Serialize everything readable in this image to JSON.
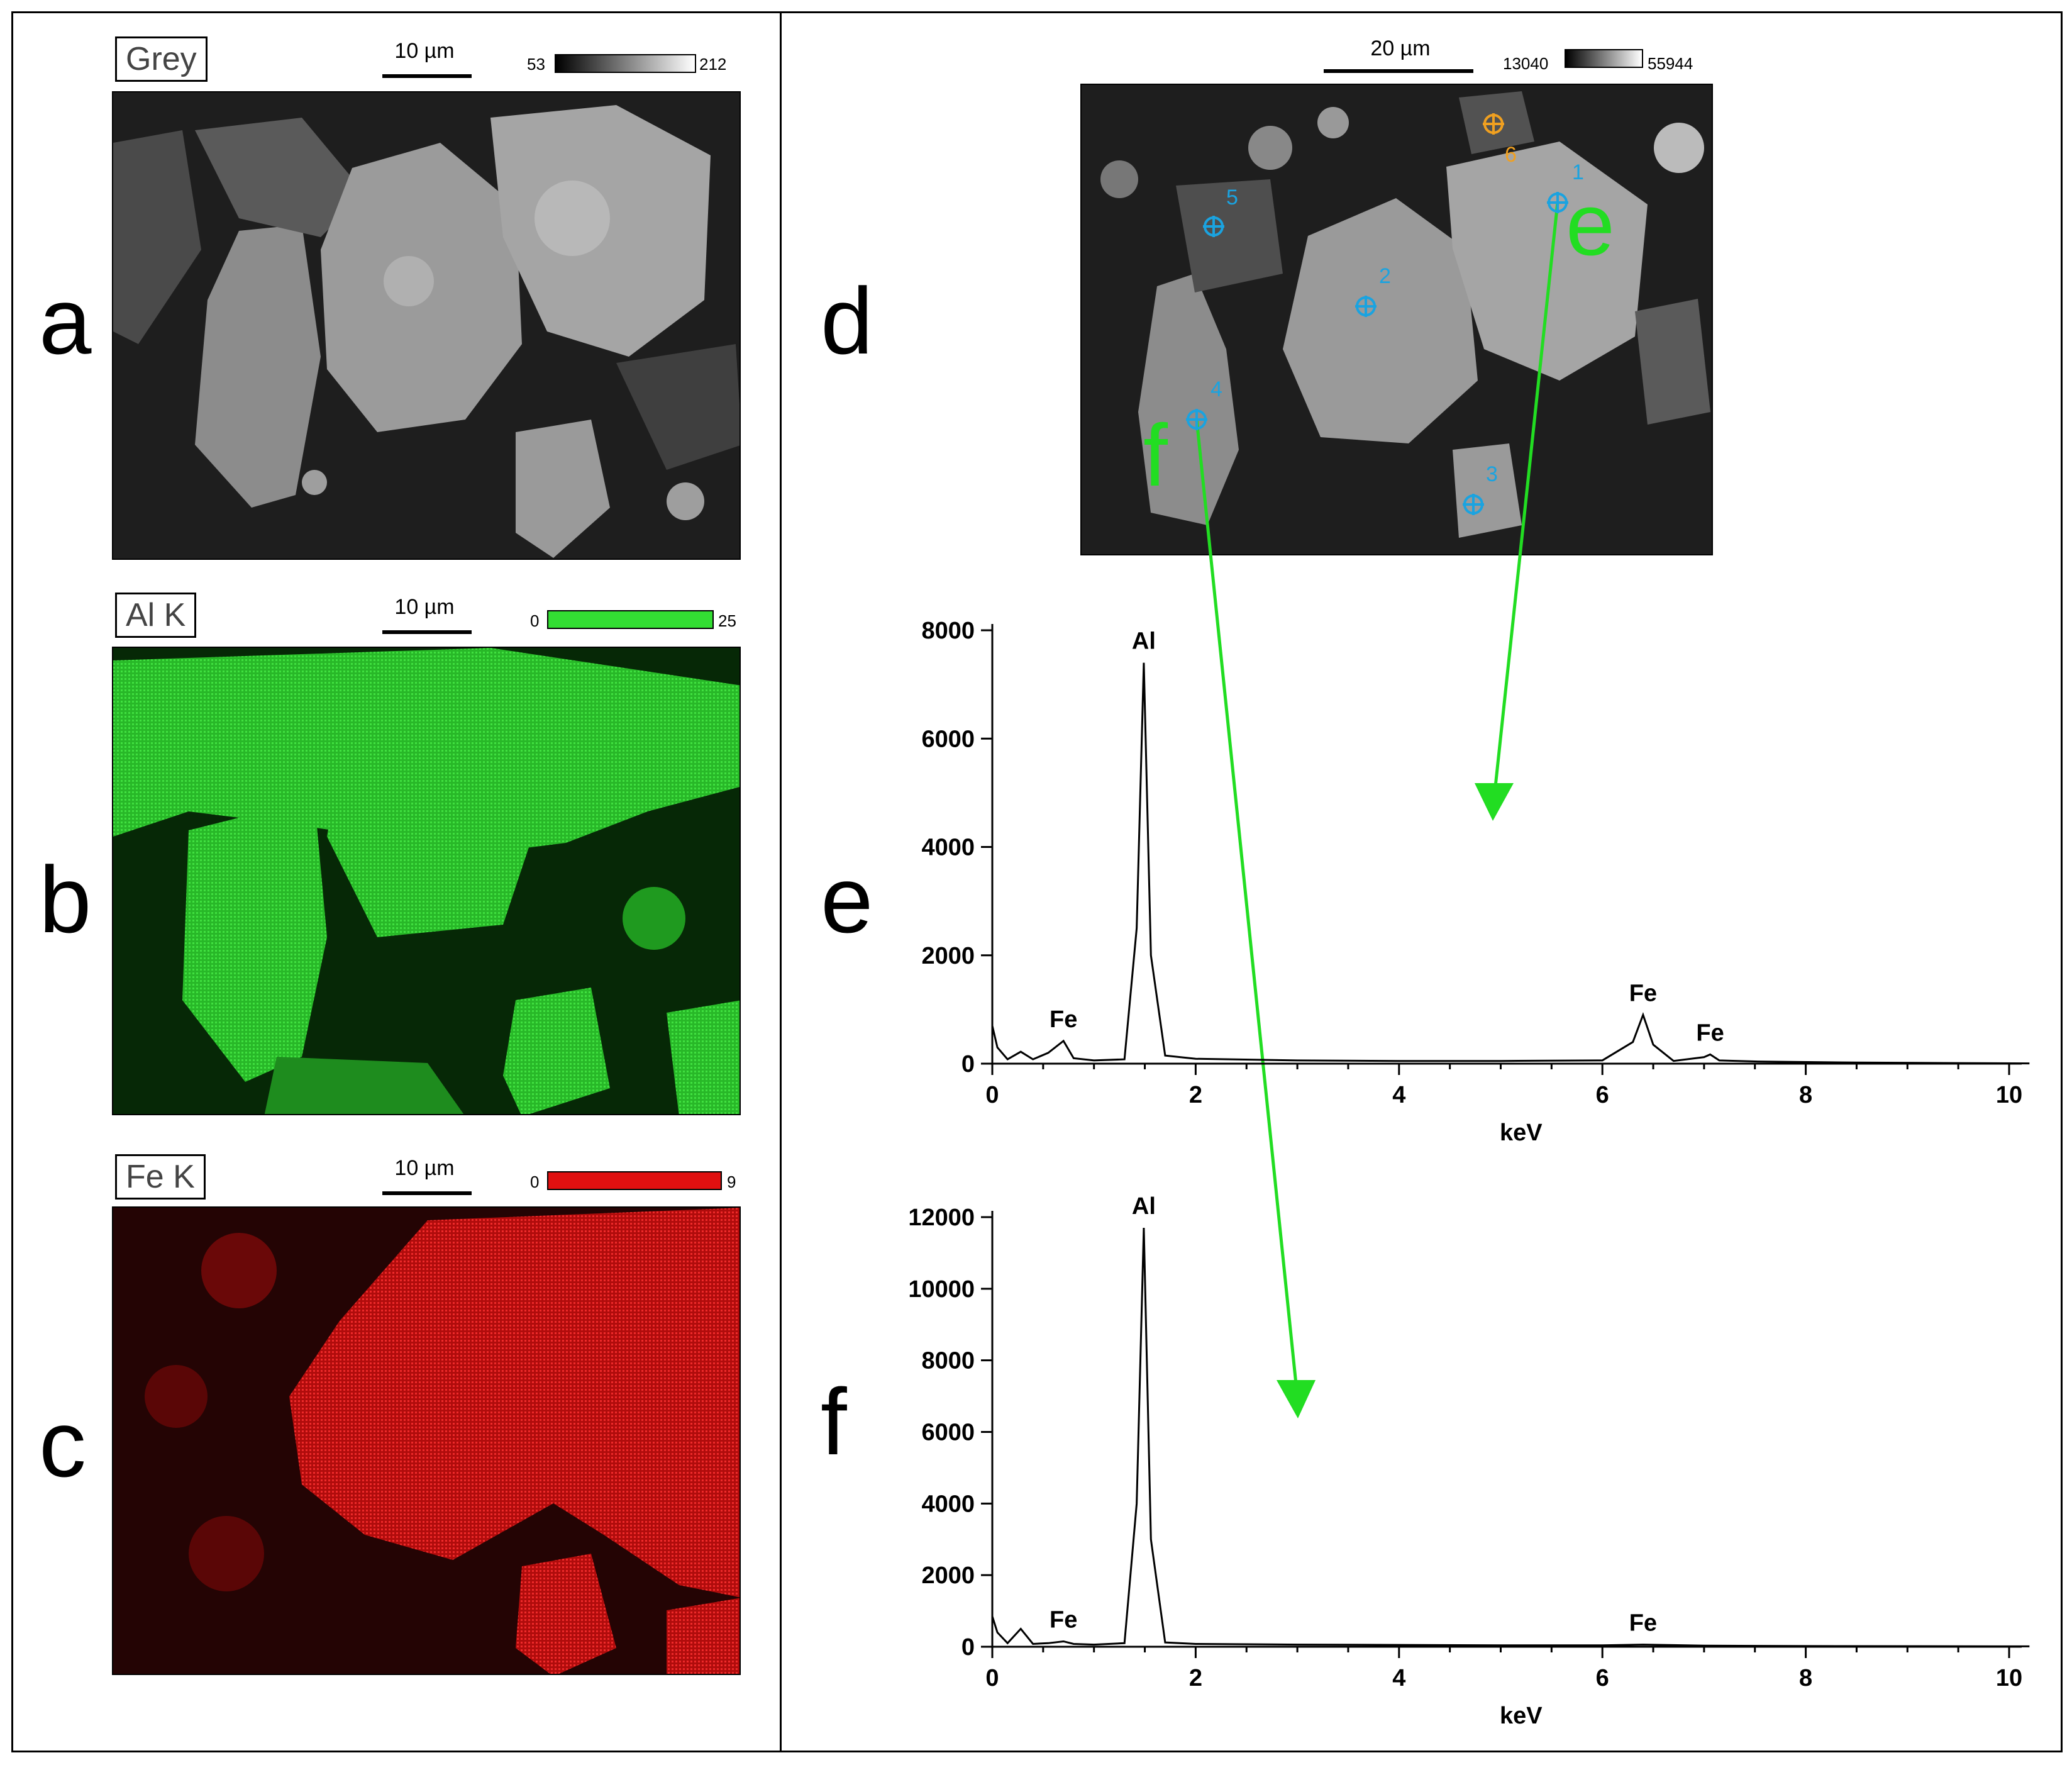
{
  "panel_letters": {
    "a": "a",
    "b": "b",
    "c": "c",
    "d": "d",
    "e": "e",
    "f": "f"
  },
  "maps": [
    {
      "label": "Grey",
      "scale": "10 µm",
      "cbar_min": "53",
      "cbar_max": "212",
      "color": "#9a9a9a"
    },
    {
      "label": "Al K",
      "scale": "10 µm",
      "cbar_min": "0",
      "cbar_max": "25",
      "color": "#33dd33"
    },
    {
      "label": "Fe K",
      "scale": "10 µm",
      "cbar_min": "0",
      "cbar_max": "9",
      "color": "#e01010"
    }
  ],
  "sem_image": {
    "scale": "20 µm",
    "cbar_min": "13040",
    "cbar_max": "55944",
    "points": [
      "1",
      "2",
      "3",
      "4",
      "5",
      "6"
    ],
    "overlay_e": "e",
    "overlay_f": "f",
    "arrow_color": "#22dd22",
    "point_color": "#1aa3e0",
    "point6_color": "#f0a020"
  },
  "chart_data": [
    {
      "type": "line",
      "panel": "e",
      "xlabel": "keV",
      "xlim": [
        0,
        10
      ],
      "ylim": [
        0,
        8000
      ],
      "xticks": [
        "0",
        "2",
        "4",
        "6",
        "8",
        "10"
      ],
      "yticks": [
        "0",
        "2000",
        "4000",
        "6000",
        "8000"
      ],
      "peaks": [
        {
          "label": "Al",
          "x": 1.49,
          "y": 7400
        },
        {
          "label": "Fe",
          "x": 0.7,
          "y": 420
        },
        {
          "label": "Fe",
          "x": 6.4,
          "y": 900
        },
        {
          "label": "Fe",
          "x": 7.06,
          "y": 170
        }
      ],
      "series": [
        {
          "x": [
            0,
            0.05,
            0.15,
            0.28,
            0.4,
            0.55,
            0.7,
            0.8,
            1.0,
            1.3,
            1.42,
            1.49,
            1.56,
            1.7,
            2.0,
            3.0,
            4.0,
            5.0,
            6.0,
            6.3,
            6.4,
            6.5,
            6.7,
            7.0,
            7.06,
            7.15,
            7.5,
            8.5,
            9.5,
            10.2
          ],
          "y": [
            700,
            300,
            80,
            220,
            80,
            200,
            420,
            100,
            60,
            80,
            2500,
            7400,
            2000,
            150,
            90,
            60,
            50,
            50,
            60,
            400,
            900,
            350,
            50,
            120,
            170,
            60,
            40,
            20,
            10,
            5
          ]
        }
      ]
    },
    {
      "type": "line",
      "panel": "f",
      "xlabel": "keV",
      "xlim": [
        0,
        10
      ],
      "ylim": [
        0,
        12000
      ],
      "xticks": [
        "0",
        "2",
        "4",
        "6",
        "8",
        "10"
      ],
      "yticks": [
        "0",
        "2000",
        "4000",
        "6000",
        "8000",
        "10000",
        "12000"
      ],
      "peaks": [
        {
          "label": "Al",
          "x": 1.49,
          "y": 11700
        },
        {
          "label": "Fe",
          "x": 0.7,
          "y": 150
        },
        {
          "label": "Fe",
          "x": 6.4,
          "y": 60
        }
      ],
      "series": [
        {
          "x": [
            0,
            0.05,
            0.15,
            0.28,
            0.4,
            0.55,
            0.7,
            0.8,
            1.0,
            1.3,
            1.42,
            1.49,
            1.56,
            1.7,
            2.0,
            3.0,
            4.0,
            5.0,
            6.0,
            6.4,
            7.0,
            8.0,
            9.0,
            10.2
          ],
          "y": [
            850,
            400,
            100,
            500,
            80,
            100,
            150,
            80,
            60,
            100,
            4000,
            11700,
            3000,
            120,
            80,
            60,
            50,
            40,
            40,
            60,
            30,
            20,
            15,
            10
          ]
        }
      ]
    }
  ]
}
